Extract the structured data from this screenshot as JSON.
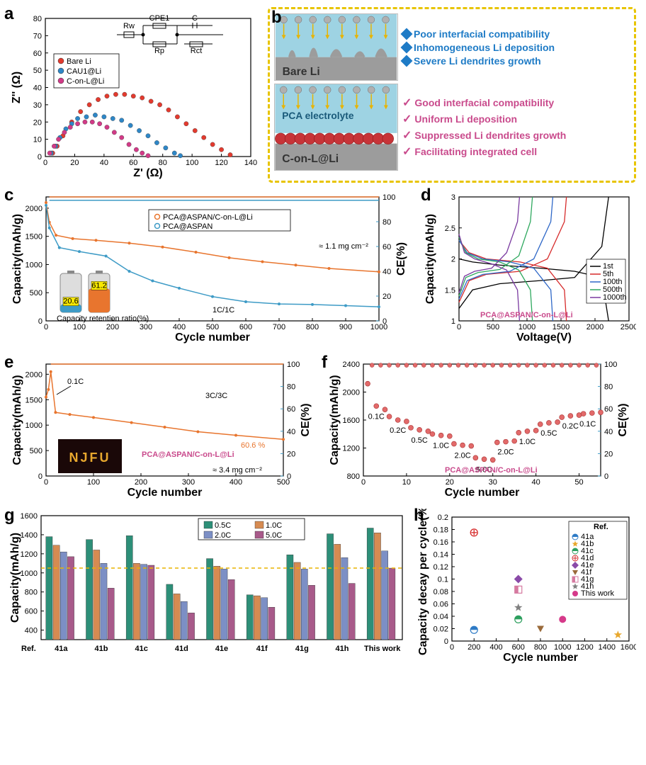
{
  "a": {
    "type": "scatter",
    "xlabel": "Z' (Ω)",
    "ylabel": "Z'' (Ω)",
    "xlim": [
      0,
      140
    ],
    "ylim": [
      0,
      80
    ],
    "xtick_step": 20,
    "ytick_step": 10,
    "label_fontsize": 16,
    "tick_fontsize": 11,
    "circuit_labels": [
      "Rw",
      "CPE1",
      "C",
      "Rp",
      "Rct"
    ],
    "series": [
      {
        "name": "Bare Li",
        "color": "#e33a2e",
        "points": [
          [
            5,
            2
          ],
          [
            8,
            6
          ],
          [
            12,
            12
          ],
          [
            18,
            20
          ],
          [
            24,
            26
          ],
          [
            30,
            30
          ],
          [
            36,
            33
          ],
          [
            42,
            35
          ],
          [
            48,
            36
          ],
          [
            54,
            36
          ],
          [
            60,
            35
          ],
          [
            66,
            34
          ],
          [
            72,
            32
          ],
          [
            78,
            30
          ],
          [
            84,
            27
          ],
          [
            90,
            23
          ],
          [
            96,
            19
          ],
          [
            102,
            15
          ],
          [
            108,
            11
          ],
          [
            114,
            7
          ],
          [
            120,
            4
          ],
          [
            126,
            1
          ]
        ]
      },
      {
        "name": "CAU1@Li",
        "color": "#2e87c7",
        "points": [
          [
            4,
            2
          ],
          [
            7,
            6
          ],
          [
            10,
            11
          ],
          [
            14,
            16
          ],
          [
            18,
            19
          ],
          [
            22,
            22
          ],
          [
            28,
            23
          ],
          [
            34,
            24
          ],
          [
            40,
            23
          ],
          [
            46,
            22
          ],
          [
            52,
            21
          ],
          [
            58,
            18
          ],
          [
            64,
            15
          ],
          [
            70,
            12
          ],
          [
            76,
            8
          ],
          [
            82,
            5
          ],
          [
            88,
            2
          ],
          [
            92,
            0.5
          ]
        ]
      },
      {
        "name": "C-on-L@Li",
        "color": "#d23a87",
        "points": [
          [
            3,
            2
          ],
          [
            6,
            6
          ],
          [
            9,
            10
          ],
          [
            13,
            14
          ],
          [
            17,
            17
          ],
          [
            22,
            19
          ],
          [
            27,
            20
          ],
          [
            32,
            20
          ],
          [
            37,
            19
          ],
          [
            42,
            17
          ],
          [
            47,
            14
          ],
          [
            52,
            11
          ],
          [
            57,
            7
          ],
          [
            62,
            4
          ],
          [
            66,
            2
          ],
          [
            70,
            0.5
          ]
        ]
      }
    ]
  },
  "b": {
    "bare_label": "Bare Li",
    "conl_label": "C-on-L@Li",
    "pca_label": "PCA electrolyte",
    "bare_color": "#9c9c9c",
    "electrolyte_color": "#9ed3e3",
    "conl_spheres": "#c73438",
    "ion_color": "#b0b0b0",
    "arrow_color": "#e8b400",
    "bare_bullets": [
      "Poor interfacial compatibility",
      "Inhomogeneous Li deposition",
      "Severe Li dendrites growth"
    ],
    "bare_text_color": "#1e7bc6",
    "conl_bullets": [
      "Good interfacial compatibility",
      "Uniform Li deposition",
      "Suppressed Li dendrites growth",
      "Facilitating integrated cell"
    ],
    "conl_text_color": "#c94a8c"
  },
  "c": {
    "type": "line",
    "xlabel": "Cycle number",
    "ylabel": "Capacity(mAh/g)",
    "ylabel2": "CE(%)",
    "xlim": [
      0,
      1000
    ],
    "ylim": [
      0,
      2200
    ],
    "ylim2": [
      0,
      100
    ],
    "xtick_step": 100,
    "ytick_step": 500,
    "ytick2_step": 20,
    "note_loading": "≈ 1.1 mg cm⁻²",
    "note_rate": "1C/1C",
    "retention_label": "Capacity retention ratio(%)",
    "retention_vals": [
      "20.6",
      "61.2"
    ],
    "series": [
      {
        "name": "PCA@ASPAN/C-on-L@Li",
        "color": "#e8752e",
        "cap": [
          [
            0,
            2100
          ],
          [
            10,
            1750
          ],
          [
            30,
            1520
          ],
          [
            80,
            1460
          ],
          [
            150,
            1430
          ],
          [
            250,
            1380
          ],
          [
            350,
            1310
          ],
          [
            450,
            1220
          ],
          [
            550,
            1120
          ],
          [
            650,
            1050
          ],
          [
            750,
            990
          ],
          [
            850,
            930
          ],
          [
            1000,
            870
          ]
        ],
        "ce": 100
      },
      {
        "name": "PCA@ASPAN",
        "color": "#3e9bc6",
        "cap": [
          [
            0,
            2050
          ],
          [
            10,
            1650
          ],
          [
            40,
            1300
          ],
          [
            100,
            1230
          ],
          [
            180,
            1150
          ],
          [
            250,
            880
          ],
          [
            320,
            710
          ],
          [
            400,
            580
          ],
          [
            500,
            430
          ],
          [
            600,
            340
          ],
          [
            700,
            300
          ],
          [
            800,
            290
          ],
          [
            900,
            270
          ],
          [
            1000,
            250
          ]
        ],
        "ce": 99
      }
    ]
  },
  "d": {
    "type": "line",
    "xlabel": "Voltage(V)",
    "ylabel": "Capacity(mAh/g)",
    "xlim": [
      0,
      2500
    ],
    "ylim": [
      1.0,
      3.0
    ],
    "xtick_step": 500,
    "ytick_step": 0.5,
    "title": "PCA@ASPAN/C-on-L@Li",
    "title_color": "#c94a8c",
    "series": [
      {
        "name": "1st",
        "color": "#000000",
        "upper": [
          [
            0,
            2.0
          ],
          [
            200,
            1.95
          ],
          [
            600,
            1.9
          ],
          [
            1200,
            1.85
          ],
          [
            1700,
            1.8
          ],
          [
            2100,
            1.7
          ],
          [
            2200,
            1.0
          ]
        ],
        "lower": [
          [
            0,
            1.2
          ],
          [
            200,
            1.5
          ],
          [
            600,
            1.6
          ],
          [
            1200,
            1.65
          ],
          [
            1700,
            1.7
          ],
          [
            2100,
            2.2
          ],
          [
            2200,
            3.0
          ]
        ]
      },
      {
        "name": "5th",
        "color": "#d62a2a",
        "upper": [
          [
            0,
            2.3
          ],
          [
            150,
            2.1
          ],
          [
            400,
            2.0
          ],
          [
            900,
            1.95
          ],
          [
            1300,
            1.85
          ],
          [
            1550,
            1.5
          ],
          [
            1580,
            1.0
          ]
        ],
        "lower": [
          [
            0,
            1.3
          ],
          [
            150,
            1.65
          ],
          [
            400,
            1.75
          ],
          [
            900,
            1.8
          ],
          [
            1300,
            2.0
          ],
          [
            1550,
            2.6
          ],
          [
            1580,
            3.0
          ]
        ]
      },
      {
        "name": "100th",
        "color": "#2e67c7",
        "upper": [
          [
            0,
            2.3
          ],
          [
            120,
            2.1
          ],
          [
            350,
            2.0
          ],
          [
            750,
            1.95
          ],
          [
            1100,
            1.85
          ],
          [
            1350,
            1.5
          ],
          [
            1380,
            1.0
          ]
        ],
        "lower": [
          [
            0,
            1.35
          ],
          [
            120,
            1.65
          ],
          [
            350,
            1.75
          ],
          [
            750,
            1.8
          ],
          [
            1100,
            2.0
          ],
          [
            1350,
            2.6
          ],
          [
            1380,
            3.0
          ]
        ]
      },
      {
        "name": "500th",
        "color": "#2ea85e",
        "upper": [
          [
            0,
            2.35
          ],
          [
            100,
            2.1
          ],
          [
            280,
            2.0
          ],
          [
            600,
            1.95
          ],
          [
            880,
            1.82
          ],
          [
            1050,
            1.5
          ],
          [
            1080,
            1.0
          ]
        ],
        "lower": [
          [
            0,
            1.4
          ],
          [
            100,
            1.7
          ],
          [
            280,
            1.78
          ],
          [
            600,
            1.83
          ],
          [
            880,
            2.05
          ],
          [
            1050,
            2.6
          ],
          [
            1080,
            3.0
          ]
        ]
      },
      {
        "name": "1000th",
        "color": "#7a3aa0",
        "upper": [
          [
            0,
            2.4
          ],
          [
            80,
            2.1
          ],
          [
            230,
            2.0
          ],
          [
            480,
            1.92
          ],
          [
            700,
            1.82
          ],
          [
            860,
            1.5
          ],
          [
            890,
            1.0
          ]
        ],
        "lower": [
          [
            0,
            1.45
          ],
          [
            80,
            1.72
          ],
          [
            230,
            1.8
          ],
          [
            480,
            1.85
          ],
          [
            700,
            2.1
          ],
          [
            860,
            2.6
          ],
          [
            890,
            3.0
          ]
        ]
      }
    ]
  },
  "e": {
    "type": "line",
    "xlabel": "Cycle number",
    "ylabel": "Capacity(mAh/g)",
    "ylabel2": "CE(%)",
    "xlim": [
      0,
      500
    ],
    "ylim": [
      0,
      2200
    ],
    "ylim2": [
      0,
      100
    ],
    "xtick_step": 100,
    "ytick_step": 500,
    "ytick2_step": 20,
    "note_loading": "≈ 3.4 mg cm⁻²",
    "note_rate": "3C/3C",
    "note_init": "0.1C",
    "retention": "60.6 %",
    "title": "PCA@ASPAN/C-on-L@Li",
    "title_color": "#c94a8c",
    "photo_text": "NJFU",
    "photo_text_color": "#e8a82e",
    "photo_bg": "#1a0808",
    "series": [
      {
        "name": "PCA@ASPAN/C-on-L@Li",
        "color": "#e8752e",
        "cap": [
          [
            0,
            1550
          ],
          [
            5,
            1700
          ],
          [
            10,
            2050
          ],
          [
            20,
            1250
          ],
          [
            50,
            1210
          ],
          [
            100,
            1150
          ],
          [
            180,
            1050
          ],
          [
            250,
            960
          ],
          [
            320,
            870
          ],
          [
            400,
            800
          ],
          [
            500,
            720
          ]
        ],
        "ce": 100
      }
    ]
  },
  "f": {
    "type": "scatter",
    "xlabel": "Cycle number",
    "ylabel": "Capacity(mAh/g)",
    "ylabel2": "CE(%)",
    "xlim": [
      0,
      55
    ],
    "ylim": [
      800,
      2400
    ],
    "ylim2": [
      0,
      100
    ],
    "xtick_step": 10,
    "ytick_step": 400,
    "ytick2_step": 20,
    "title": "PCA@ASPAN/C-on-L@Li",
    "title_color": "#c94a8c",
    "rates": [
      "0.1C",
      "0.2C",
      "0.5C",
      "1.0C",
      "2.0C",
      "5.0C",
      "2.0C",
      "1.0C",
      "0.5C",
      "0.2C",
      "0.1C"
    ],
    "color": "#e26a6a",
    "ce_color": "#e26a6a",
    "cap": [
      [
        1,
        2120
      ],
      [
        3,
        1800
      ],
      [
        5,
        1750
      ],
      [
        6,
        1650
      ],
      [
        8,
        1600
      ],
      [
        10,
        1580
      ],
      [
        11,
        1490
      ],
      [
        13,
        1460
      ],
      [
        15,
        1440
      ],
      [
        16,
        1400
      ],
      [
        18,
        1380
      ],
      [
        20,
        1370
      ],
      [
        21,
        1260
      ],
      [
        23,
        1240
      ],
      [
        25,
        1230
      ],
      [
        26,
        1060
      ],
      [
        28,
        1040
      ],
      [
        30,
        1030
      ],
      [
        31,
        1280
      ],
      [
        33,
        1290
      ],
      [
        35,
        1300
      ],
      [
        36,
        1420
      ],
      [
        38,
        1440
      ],
      [
        40,
        1450
      ],
      [
        41,
        1540
      ],
      [
        43,
        1560
      ],
      [
        45,
        1570
      ],
      [
        46,
        1640
      ],
      [
        48,
        1660
      ],
      [
        50,
        1670
      ],
      [
        51,
        1690
      ],
      [
        53,
        1700
      ],
      [
        55,
        1710
      ]
    ],
    "ce": 99
  },
  "g": {
    "type": "bar",
    "xlabel": "Ref.",
    "ylabel": "Capacity(mAh/g)",
    "ylim": [
      300,
      1600
    ],
    "ytick_step": 200,
    "categories": [
      "41a",
      "41b",
      "41c",
      "41d",
      "41e",
      "41f",
      "41g",
      "41h",
      "This work"
    ],
    "groups": [
      {
        "name": "0.5C",
        "color": "#2d8f78"
      },
      {
        "name": "1.0C",
        "color": "#d68b52"
      },
      {
        "name": "2.0C",
        "color": "#7c8fc5"
      },
      {
        "name": "5.0C",
        "color": "#a85a8a"
      }
    ],
    "values": [
      [
        1380,
        1290,
        1220,
        1170
      ],
      [
        1350,
        1240,
        1100,
        840
      ],
      [
        1390,
        1100,
        1090,
        1080
      ],
      [
        880,
        780,
        700,
        580
      ],
      [
        1150,
        1070,
        1040,
        930
      ],
      [
        770,
        760,
        740,
        640
      ],
      [
        1190,
        1110,
        1040,
        870
      ],
      [
        1410,
        1300,
        1160,
        890
      ],
      [
        1470,
        1420,
        1230,
        1050
      ]
    ],
    "ref_line": 1050,
    "ref_line_color": "#e8b400"
  },
  "h": {
    "type": "scatter",
    "xlabel": "Cycle number",
    "ylabel": "Capacity decay per cycle(%)",
    "xlim": [
      0,
      1600
    ],
    "ylim": [
      0,
      0.2
    ],
    "xtick_step": 200,
    "ytick_step": 0.02,
    "legend_title": "Ref.",
    "series": [
      {
        "name": "41a",
        "marker": "half-circle",
        "color": "#2e7bc6",
        "x": 200,
        "y": 0.018
      },
      {
        "name": "41b",
        "marker": "star",
        "color": "#e8a82e",
        "x": 1500,
        "y": 0.01
      },
      {
        "name": "41c",
        "marker": "half-circle",
        "color": "#2d9f5e",
        "x": 600,
        "y": 0.035
      },
      {
        "name": "41d",
        "marker": "cross-circle",
        "color": "#d62a2a",
        "x": 200,
        "y": 0.175
      },
      {
        "name": "41e",
        "marker": "diamond",
        "color": "#8a4aa8",
        "x": 600,
        "y": 0.1
      },
      {
        "name": "41f",
        "marker": "triangle-down",
        "color": "#9a6a3a",
        "x": 800,
        "y": 0.02
      },
      {
        "name": "41g",
        "marker": "half-square",
        "color": "#d67aa0",
        "x": 600,
        "y": 0.083
      },
      {
        "name": "41h",
        "marker": "star",
        "color": "#808080",
        "x": 600,
        "y": 0.054
      },
      {
        "name": "This work",
        "marker": "circle",
        "color": "#d63a8a",
        "x": 1000,
        "y": 0.035
      }
    ]
  }
}
